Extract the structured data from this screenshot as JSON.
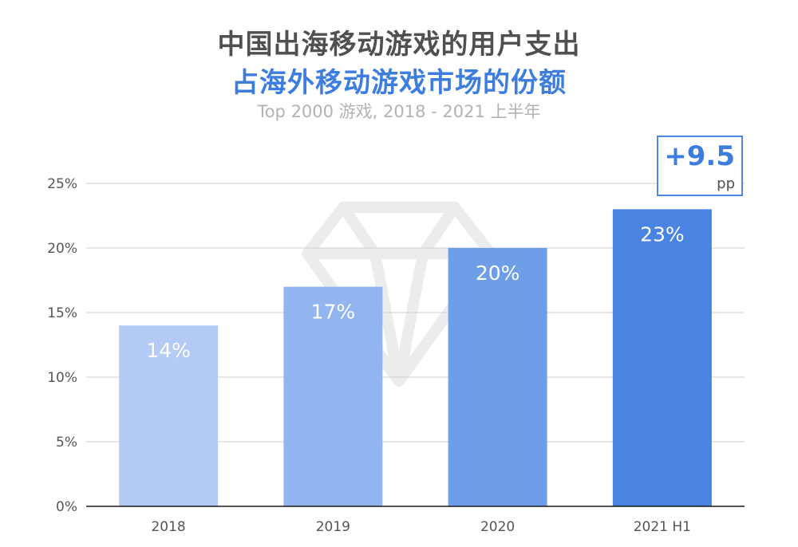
{
  "header": {
    "title_line1": "中国出海移动游戏的用户支出",
    "title_line2": "占海外移动游戏市场的份额",
    "subtitle": "Top 2000 游戏, 2018 - 2021 上半年"
  },
  "callout": {
    "value": "+9.5",
    "unit": "pp"
  },
  "chart_data": {
    "type": "bar",
    "title": "中国出海移动游戏的用户支出 占海外移动游戏市场的份额",
    "subtitle": "Top 2000 游戏, 2018 - 2021 上半年",
    "categories": [
      "2018",
      "2019",
      "2020",
      "2021 H1"
    ],
    "values": [
      14,
      17,
      20,
      23
    ],
    "data_labels": [
      "14%",
      "17%",
      "20%",
      "23%"
    ],
    "bar_colors": [
      "#b3cbf5",
      "#92b5f0",
      "#6f9ee9",
      "#4a84e2"
    ],
    "ylim": [
      0,
      25
    ],
    "yticks": [
      0,
      5,
      10,
      15,
      20,
      25
    ],
    "ytick_labels": [
      "0%",
      "5%",
      "10%",
      "15%",
      "20%",
      "25%"
    ],
    "grid": true,
    "legend": "none"
  }
}
